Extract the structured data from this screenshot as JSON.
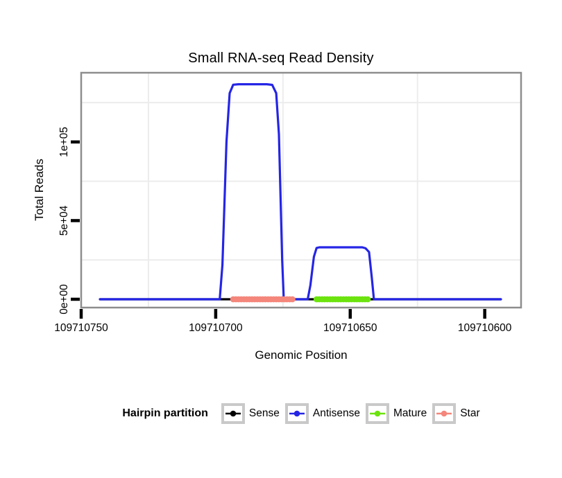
{
  "title": "Small RNA-seq Read Density",
  "chart_data": {
    "type": "line",
    "title": "Small RNA-seq Read Density",
    "xlabel": "Genomic Position",
    "ylabel": "Total Reads",
    "x_axis": {
      "reversed": true,
      "range": [
        109710750,
        109710586.5
      ],
      "ticks": [
        109710750,
        109710700,
        109710650,
        109710600
      ],
      "tick_labels": [
        "109710750",
        "109710700",
        "109710650",
        "109710600"
      ],
      "minor_gridlines": [
        109710725,
        109710675,
        109710625
      ]
    },
    "y_axis": {
      "range": [
        -5300,
        144000
      ],
      "ticks": [
        0,
        50000,
        100000
      ],
      "tick_labels": [
        "0e+00",
        "5e+04",
        "1e+05"
      ],
      "minor_gridlines": [
        25000,
        75000,
        125000
      ]
    },
    "series": [
      {
        "name": "Sense",
        "color": "#000000",
        "style": "line",
        "points": [
          [
            109710743,
            0
          ],
          [
            109710594,
            0
          ]
        ]
      },
      {
        "name": "Antisense",
        "color": "#2525E6",
        "style": "line",
        "points": [
          [
            109710743,
            0
          ],
          [
            109710698.5,
            0
          ],
          [
            109710697.5,
            22000
          ],
          [
            109710696,
            100000
          ],
          [
            109710694.8,
            131000
          ],
          [
            109710693.5,
            136400
          ],
          [
            109710691.5,
            136700
          ],
          [
            109710681,
            136700
          ],
          [
            109710679,
            136300
          ],
          [
            109710677.5,
            131000
          ],
          [
            109710676.5,
            105000
          ],
          [
            109710675.3,
            25000
          ],
          [
            109710674.7,
            0
          ],
          [
            109710665.8,
            0
          ],
          [
            109710664.8,
            9000
          ],
          [
            109710663.5,
            27000
          ],
          [
            109710662.5,
            32600
          ],
          [
            109710661.5,
            33000
          ],
          [
            109710645.5,
            33000
          ],
          [
            109710644.3,
            32400
          ],
          [
            109710643,
            30000
          ],
          [
            109710642,
            14000
          ],
          [
            109710641.2,
            0
          ],
          [
            109710594,
            0
          ]
        ]
      },
      {
        "name": "Star",
        "color": "#F4867B",
        "style": "point-run",
        "value": 0,
        "from": 109710693.5,
        "to": 109710671.5
      },
      {
        "name": "Mature",
        "color": "#6CE30E",
        "style": "point-run",
        "value": 0,
        "from": 109710663,
        "to": 109710643.5
      }
    ]
  },
  "legend": {
    "title": "Hairpin partition",
    "items": [
      {
        "label": "Sense",
        "color": "#000000"
      },
      {
        "label": "Antisense",
        "color": "#2525E6"
      },
      {
        "label": "Mature",
        "color": "#6CE30E"
      },
      {
        "label": "Star",
        "color": "#F4867B"
      }
    ]
  },
  "colors": {
    "frame": "#8D8D8D",
    "grid": "#ECECEC",
    "tick": "#000000",
    "legend_box_border": "#C9C9C9",
    "background": "#FFFFFF"
  }
}
